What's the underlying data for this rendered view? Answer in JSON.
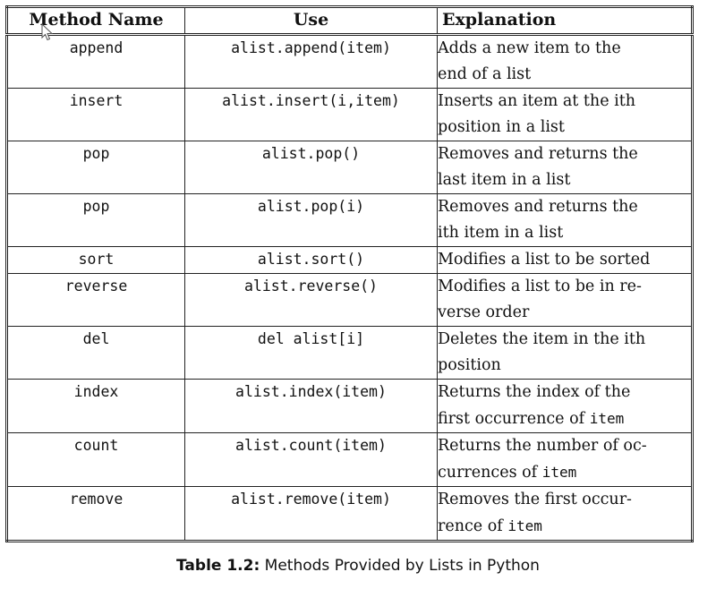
{
  "table": {
    "headers": {
      "method_name": "Method Name",
      "use": "Use",
      "explanation": "Explanation"
    },
    "rows": [
      {
        "name": "append",
        "use": "alist.append(item)",
        "line1": "Adds a new item to the",
        "line2": "end of a list"
      },
      {
        "name": "insert",
        "use": "alist.insert(i,item)",
        "line1": "Inserts an item at the ith",
        "line2": "position in a list"
      },
      {
        "name": "pop",
        "use": "alist.pop()",
        "line1": "Removes and returns the",
        "line2": "last item in a list"
      },
      {
        "name": "pop",
        "use": "alist.pop(i)",
        "line1": "Removes and returns the",
        "line2": "ith item in a list"
      },
      {
        "name": "sort",
        "use": "alist.sort()",
        "line1": "Modifies a list to be sorted",
        "line2": ""
      },
      {
        "name": "reverse",
        "use": "alist.reverse()",
        "line1": "Modifies a list to be in re-",
        "line2": "verse order"
      },
      {
        "name": "del",
        "use": "del alist[i]",
        "line1": "Deletes the item in the ith",
        "line2": "position"
      },
      {
        "name": "index",
        "use": "alist.index(item)",
        "line1": "Returns the index of the",
        "line2": "first occurrence of",
        "code": "item"
      },
      {
        "name": "count",
        "use": "alist.count(item)",
        "line1": "Returns the number of oc-",
        "line2": "currences of",
        "code": "item"
      },
      {
        "name": "remove",
        "use": "alist.remove(item)",
        "line1": "Removes the first occur-",
        "line2": "rence of",
        "code": "item"
      }
    ]
  },
  "caption": {
    "label": "Table 1.2:",
    "text": "Methods Provided by Lists in Python"
  }
}
